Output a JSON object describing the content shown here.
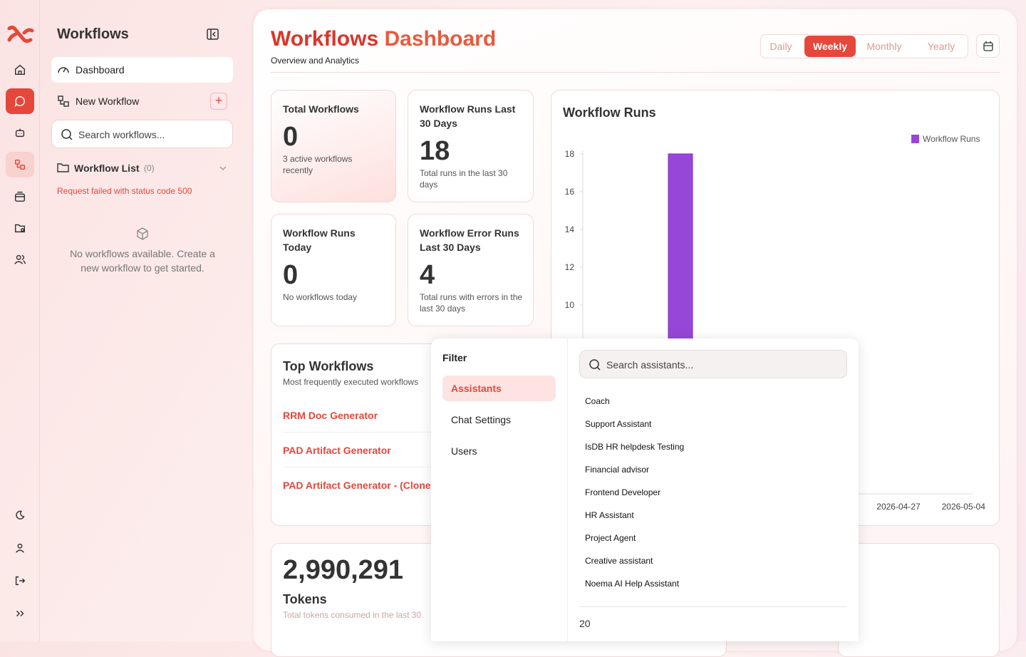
{
  "sidebar": {
    "title": "Workflows",
    "nav": [
      "Dashboard",
      "New Workflow"
    ],
    "search_placeholder": "Search workflows...",
    "list_title": "Workflow List",
    "list_count": "(0)",
    "error": "Request failed with status code 500",
    "empty": "No workflows available. Create a new workflow to get started."
  },
  "header": {
    "title_a": "Workflows",
    "title_b": "Dashboard",
    "subtitle": "Overview and Analytics",
    "periods": [
      "Daily",
      "Weekly",
      "Monthly",
      "Yearly"
    ],
    "active_period_index": 1
  },
  "stats": [
    {
      "label": "Total Workflows",
      "value": "0",
      "note": "3 active workflows recently"
    },
    {
      "label": "Workflow Runs Last 30 Days",
      "value": "18",
      "note": "Total runs in the last 30 days"
    },
    {
      "label": "Workflow Runs Today",
      "value": "0",
      "note": "No workflows today"
    },
    {
      "label": "Workflow Error Runs Last 30 Days",
      "value": "4",
      "note": "Total runs with errors in the last 30 days"
    }
  ],
  "chart_data": {
    "type": "bar",
    "title": "Workflow Runs",
    "categories": [
      null,
      null,
      null,
      null,
      "2026-04-27",
      "2026-05-04"
    ],
    "series": [
      {
        "name": "Workflow Runs",
        "color": "#9747d8",
        "values": [
          0,
          18,
          0,
          0,
          0,
          0
        ]
      }
    ],
    "ylim": [
      0,
      18
    ],
    "yticks": [
      10,
      12,
      14,
      16,
      18
    ],
    "legend": "top-right"
  },
  "top_workflows": {
    "title": "Top Workflows",
    "subtitle": "Most frequently executed workflows",
    "items": [
      "RRM Doc Generator",
      "PAD Artifact Generator",
      "PAD Artifact Generator - (Clone"
    ]
  },
  "tokens": {
    "value": "2,990,291",
    "label": "Tokens",
    "note": "Total tokens consumed in the last 30"
  },
  "filter": {
    "title": "Filter",
    "tabs": [
      "Assistants",
      "Chat Settings",
      "Users"
    ],
    "active_tab_index": 0,
    "search_placeholder": "Search assistants...",
    "assistants": [
      "Coach",
      "Support Assistant",
      "IsDB HR helpdesk Testing",
      "Financial advisor",
      "Frontend Developer",
      "HR Assistant",
      "Project Agent",
      "Creative assistant",
      "Noema AI Help Assistant"
    ],
    "footer": "20"
  }
}
